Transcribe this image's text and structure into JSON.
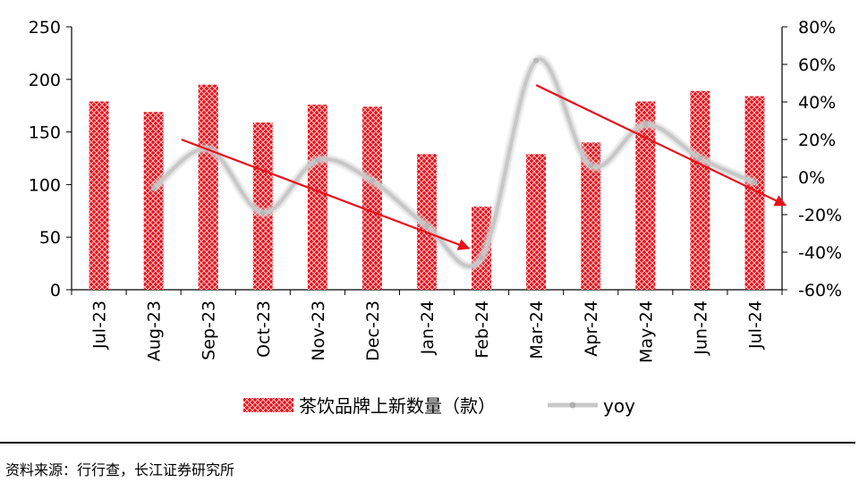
{
  "chart_data": {
    "type": "bar",
    "categories": [
      "Jul-23",
      "Aug-23",
      "Sep-23",
      "Oct-23",
      "Nov-23",
      "Dec-23",
      "Jan-24",
      "Feb-24",
      "Mar-24",
      "Apr-24",
      "May-24",
      "Jun-24",
      "Jul-24"
    ],
    "series": [
      {
        "name": "茶饮品牌上新数量（款）",
        "type": "bar",
        "axis": "left",
        "values": [
          179,
          169,
          195,
          159,
          176,
          174,
          129,
          79,
          129,
          140,
          179,
          189,
          184
        ],
        "color": "#e8101a"
      },
      {
        "name": "yoy",
        "type": "line",
        "axis": "right",
        "values": [
          null,
          -6,
          15,
          -19,
          9,
          -2,
          -26,
          -43,
          62,
          6,
          28,
          10,
          -3
        ],
        "color": "#c8c8c8"
      }
    ],
    "left_axis": {
      "ticks": [
        "250",
        "200",
        "150",
        "100",
        "50",
        "0"
      ],
      "ylim": [
        0,
        250
      ]
    },
    "right_axis": {
      "ticks": [
        "80%",
        "60%",
        "40%",
        "20%",
        "0%",
        "-20%",
        "-40%",
        "-60%"
      ],
      "ylim": [
        -60,
        80
      ]
    },
    "trend_arrows": [
      {
        "from": [
          "Sep-23",
          20
        ],
        "to": [
          "Feb-24",
          -38
        ],
        "color": "#e8101a"
      },
      {
        "from": [
          "Mar-24",
          49
        ],
        "to": [
          "Jul-24",
          -15
        ],
        "color": "#e8101a"
      }
    ]
  },
  "legend": {
    "bar_label": "茶饮品牌上新数量（款）",
    "line_label": "yoy"
  },
  "source_text": "资料来源：行行查，长江证券研究所"
}
